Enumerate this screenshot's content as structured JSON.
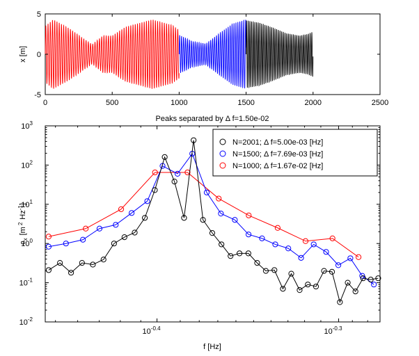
{
  "chart_data": [
    {
      "type": "line",
      "xlabel": "",
      "ylabel": "x [m]",
      "xlim": [
        0,
        2500
      ],
      "ylim": [
        -5,
        5
      ],
      "xticks": [
        0,
        500,
        1000,
        1500,
        2000,
        2500
      ],
      "yticks": [
        5,
        0,
        -5
      ],
      "series": [
        {
          "color": "#ff0000",
          "x_range": [
            0,
            1000
          ],
          "period_samples": 16.7,
          "envelope": [
            [
              0,
              3.5
            ],
            [
              60,
              4.3
            ],
            [
              180,
              3.2
            ],
            [
              350,
              1.2
            ],
            [
              430,
              2.3
            ],
            [
              500,
              2.3
            ],
            [
              600,
              3.4
            ],
            [
              800,
              4.3
            ],
            [
              950,
              3.6
            ],
            [
              1000,
              3.0
            ]
          ]
        },
        {
          "color": "#0000ff",
          "x_range": [
            1000,
            1500
          ],
          "period_samples": 14.5,
          "envelope": [
            [
              1000,
              2.4
            ],
            [
              1100,
              1.6
            ],
            [
              1200,
              1.3
            ],
            [
              1300,
              2.6
            ],
            [
              1400,
              3.8
            ],
            [
              1500,
              4.3
            ]
          ]
        },
        {
          "color": "#000000",
          "x_range": [
            1500,
            2000
          ],
          "period_samples": 12.5,
          "envelope": [
            [
              1500,
              4.2
            ],
            [
              1600,
              3.9
            ],
            [
              1700,
              3.3
            ],
            [
              1800,
              2.6
            ],
            [
              1900,
              2.3
            ],
            [
              1960,
              2.5
            ],
            [
              2000,
              2.8
            ]
          ]
        }
      ]
    },
    {
      "type": "line",
      "title": "Peaks separated by Δ f=1.50e-02",
      "xlabel": "f [Hz]",
      "ylabel_main": "c",
      "ylabel_sub": "x",
      "ylabel_rest": "[m",
      "ylabel_sup1": "2",
      "ylabel_mid": "Hz",
      "ylabel_sup2": "-1",
      "ylabel_end": "]",
      "xscale": "log",
      "yscale": "log",
      "xlim": [
        0.3455,
        0.5282
      ],
      "ylim": [
        0.01,
        1000
      ],
      "yticks": [
        {
          "base": "10",
          "exp": "-2",
          "v": 0.01
        },
        {
          "base": "10",
          "exp": "-1",
          "v": 0.1
        },
        {
          "base": "10",
          "exp": "0",
          "v": 1
        },
        {
          "base": "10",
          "exp": "1",
          "v": 10
        },
        {
          "base": "10",
          "exp": "2",
          "v": 100
        },
        {
          "base": "10",
          "exp": "3",
          "v": 1000
        }
      ],
      "xticks": [
        {
          "base": "10",
          "exp": "-0.4",
          "v": 0.3981
        },
        {
          "base": "10",
          "exp": "-0.3",
          "v": 0.5012
        }
      ],
      "legend_position": "top-right",
      "series": [
        {
          "name": "N=2001; Δ f=5.00e-03 [Hz]",
          "color": "#000000",
          "x": [
            0.347,
            0.352,
            0.357,
            0.362,
            0.367,
            0.372,
            0.377,
            0.382,
            0.387,
            0.392,
            0.397,
            0.402,
            0.407,
            0.412,
            0.417,
            0.422,
            0.427,
            0.432,
            0.437,
            0.442,
            0.447,
            0.452,
            0.457,
            0.462,
            0.467,
            0.472,
            0.477,
            0.482,
            0.487,
            0.492,
            0.497,
            0.502,
            0.507,
            0.512,
            0.517,
            0.522,
            0.527
          ],
          "y": [
            0.21,
            0.32,
            0.18,
            0.32,
            0.29,
            0.39,
            1.0,
            1.45,
            1.9,
            4.5,
            23.0,
            160,
            38.0,
            4.5,
            430,
            4.0,
            1.85,
            0.95,
            0.48,
            0.56,
            0.56,
            0.32,
            0.2,
            0.21,
            0.07,
            0.17,
            0.065,
            0.09,
            0.08,
            0.2,
            0.19,
            0.032,
            0.1,
            0.06,
            0.13,
            0.12,
            0.13
          ]
        },
        {
          "name": "N=1500; Δ f=7.69e-03 [Hz]",
          "color": "#0000ff",
          "x": [
            0.347,
            0.3547,
            0.3624,
            0.3701,
            0.3778,
            0.3855,
            0.3932,
            0.4009,
            0.4086,
            0.4163,
            0.424,
            0.4317,
            0.4394,
            0.4471,
            0.4548,
            0.4625,
            0.4702,
            0.4779,
            0.4856,
            0.4933,
            0.501,
            0.5087,
            0.5164,
            0.5241
          ],
          "y": [
            0.83,
            1.0,
            1.25,
            2.4,
            3.0,
            6.0,
            12.0,
            95.0,
            60.0,
            195,
            20.0,
            5.8,
            4.0,
            1.7,
            1.35,
            0.95,
            0.75,
            0.43,
            0.95,
            0.61,
            0.28,
            0.42,
            0.15,
            0.09
          ]
        },
        {
          "name": "N=1000; Δ f=1.67e-02 [Hz]",
          "color": "#ff0000",
          "x": [
            0.347,
            0.3637,
            0.3804,
            0.3971,
            0.4138,
            0.4305,
            0.4472,
            0.4639,
            0.4806,
            0.4973,
            0.514
          ],
          "y": [
            1.5,
            2.4,
            7.5,
            65.0,
            65.0,
            14.0,
            5.2,
            2.5,
            1.15,
            1.35,
            0.45
          ]
        }
      ]
    }
  ]
}
